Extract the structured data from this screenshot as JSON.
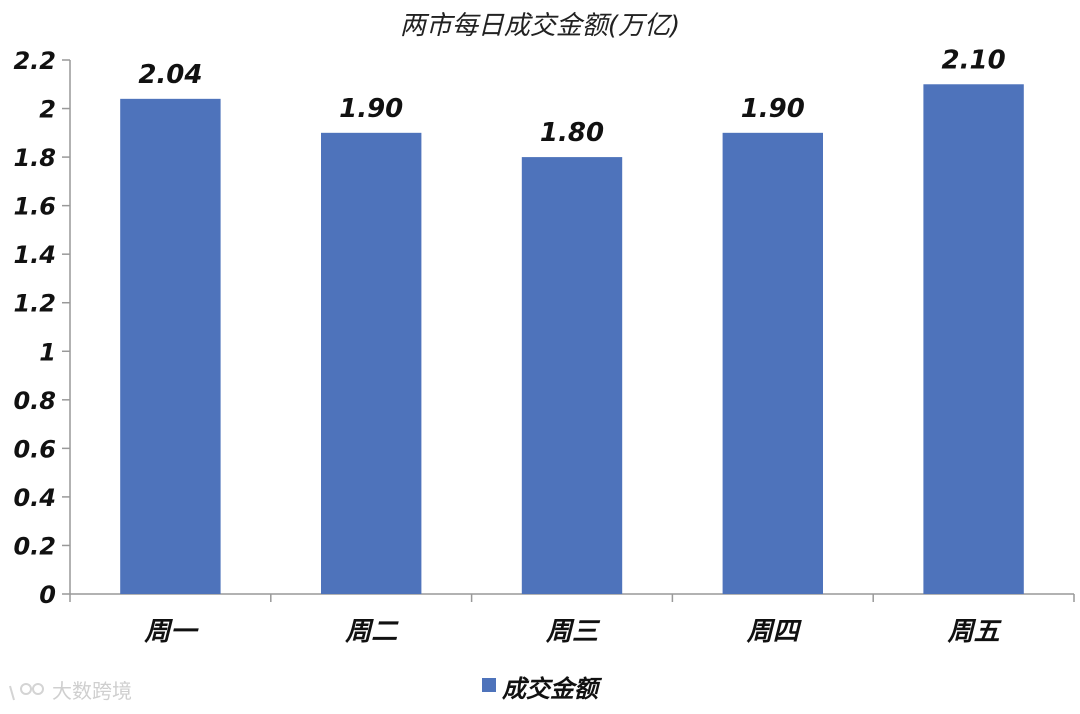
{
  "chart_data": {
    "type": "bar",
    "title": "两市每日成交金额(万亿)",
    "categories": [
      "周一",
      "周二",
      "周三",
      "周四",
      "周五"
    ],
    "series": [
      {
        "name": "成交金额",
        "values": [
          2.04,
          1.9,
          1.8,
          1.9,
          2.1
        ]
      }
    ],
    "data_labels": [
      "2.04",
      "1.90",
      "1.80",
      "1.90",
      "2.10"
    ],
    "ylim": [
      0,
      2.2
    ],
    "yticks": [
      0,
      0.2,
      0.4,
      0.6,
      0.8,
      1,
      1.2,
      1.4,
      1.6,
      1.8,
      2,
      2.2
    ],
    "grid": false,
    "legend_position": "bottom"
  },
  "colors": {
    "bar": "#4e73bb",
    "axis": "#999999"
  },
  "watermark": {
    "text": "大数跨境",
    "icon": "logo-icon"
  }
}
